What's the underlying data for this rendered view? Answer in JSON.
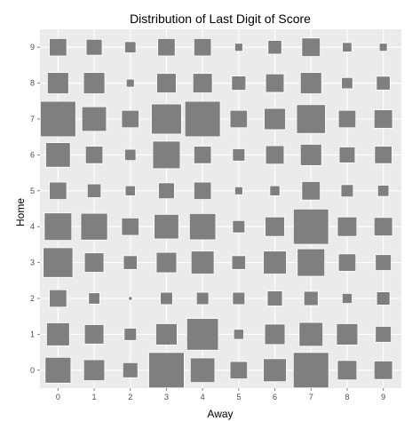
{
  "chart_data": {
    "type": "heatmap",
    "title": "Distribution of Last Digit of Score",
    "xlabel": "Away",
    "ylabel": "Home",
    "x_ticks": [
      "0",
      "1",
      "2",
      "3",
      "4",
      "5",
      "6",
      "7",
      "8",
      "9"
    ],
    "y_ticks": [
      "0",
      "1",
      "2",
      "3",
      "4",
      "5",
      "6",
      "7",
      "8",
      "9"
    ],
    "value_encoding": "square area",
    "grid": true,
    "colors": {
      "panel": "#ebebeb",
      "grid": "#ffffff",
      "tile": "#7f7f7f",
      "tile_border": "#ffffff"
    },
    "cells": [
      [
        0.53,
        0.35,
        0.18,
        1.0,
        0.48,
        0.24,
        0.42,
        1.0,
        0.3,
        0.27
      ],
      [
        0.42,
        0.3,
        0.12,
        0.36,
        0.8,
        0.08,
        0.33,
        0.45,
        0.36,
        0.2
      ],
      [
        0.24,
        0.1,
        0.01,
        0.12,
        0.12,
        0.12,
        0.18,
        0.16,
        0.08,
        0.14
      ],
      [
        0.7,
        0.3,
        0.15,
        0.33,
        0.42,
        0.15,
        0.42,
        0.6,
        0.24,
        0.2
      ],
      [
        0.6,
        0.57,
        0.24,
        0.48,
        0.55,
        0.12,
        0.3,
        0.99,
        0.3,
        0.27
      ],
      [
        0.24,
        0.15,
        0.08,
        0.2,
        0.24,
        0.05,
        0.08,
        0.27,
        0.12,
        0.1
      ],
      [
        0.48,
        0.24,
        0.1,
        0.6,
        0.24,
        0.12,
        0.27,
        0.36,
        0.2,
        0.24
      ],
      [
        1.0,
        0.48,
        0.24,
        0.72,
        1.0,
        0.24,
        0.36,
        0.66,
        0.24,
        0.27
      ],
      [
        0.36,
        0.36,
        0.05,
        0.3,
        0.3,
        0.16,
        0.27,
        0.36,
        0.1,
        0.15
      ],
      [
        0.24,
        0.2,
        0.1,
        0.24,
        0.24,
        0.05,
        0.15,
        0.27,
        0.07,
        0.05
      ]
    ]
  }
}
